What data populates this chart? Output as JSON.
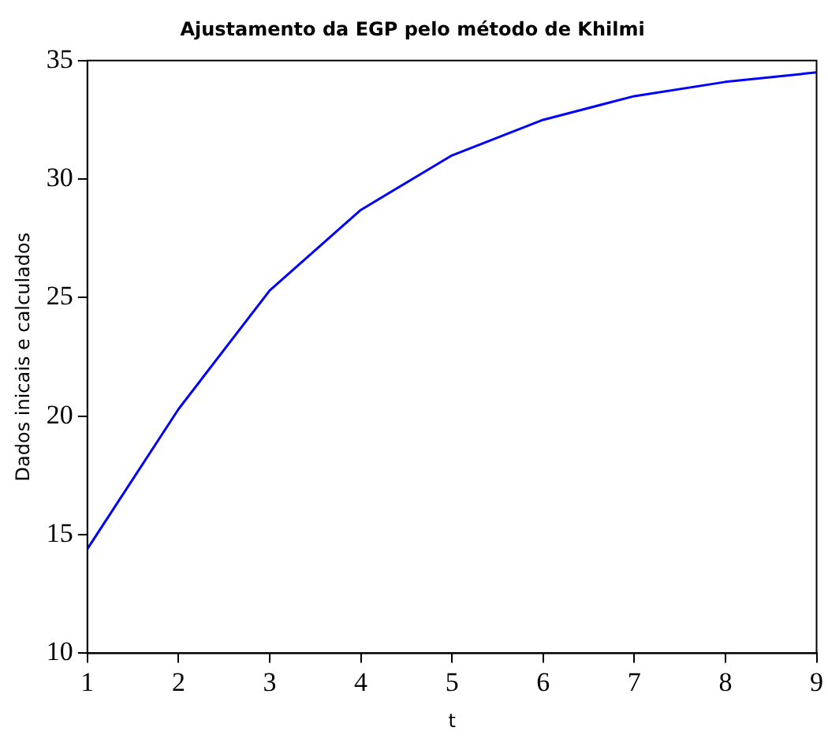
{
  "chart_data": {
    "type": "line",
    "title": "Ajustamento da EGP pelo método de Khilmi",
    "xlabel": "t",
    "ylabel": "Dados inicais e calculados",
    "x": [
      1,
      2,
      3,
      4,
      5,
      6,
      7,
      8,
      9
    ],
    "series": [
      {
        "color": "#0000ff",
        "values": [
          14.4,
          20.3,
          25.3,
          28.7,
          31.0,
          32.5,
          33.5,
          34.1,
          34.5
        ]
      }
    ],
    "xlim": [
      1,
      9
    ],
    "xticks": [
      1,
      2,
      3,
      4,
      5,
      6,
      7,
      8,
      9
    ],
    "ylim": [
      10,
      35
    ],
    "yticks": [
      10,
      15,
      20,
      25,
      30,
      35
    ],
    "grid": false,
    "legend": false,
    "marker": "none",
    "line_style": "solid"
  }
}
